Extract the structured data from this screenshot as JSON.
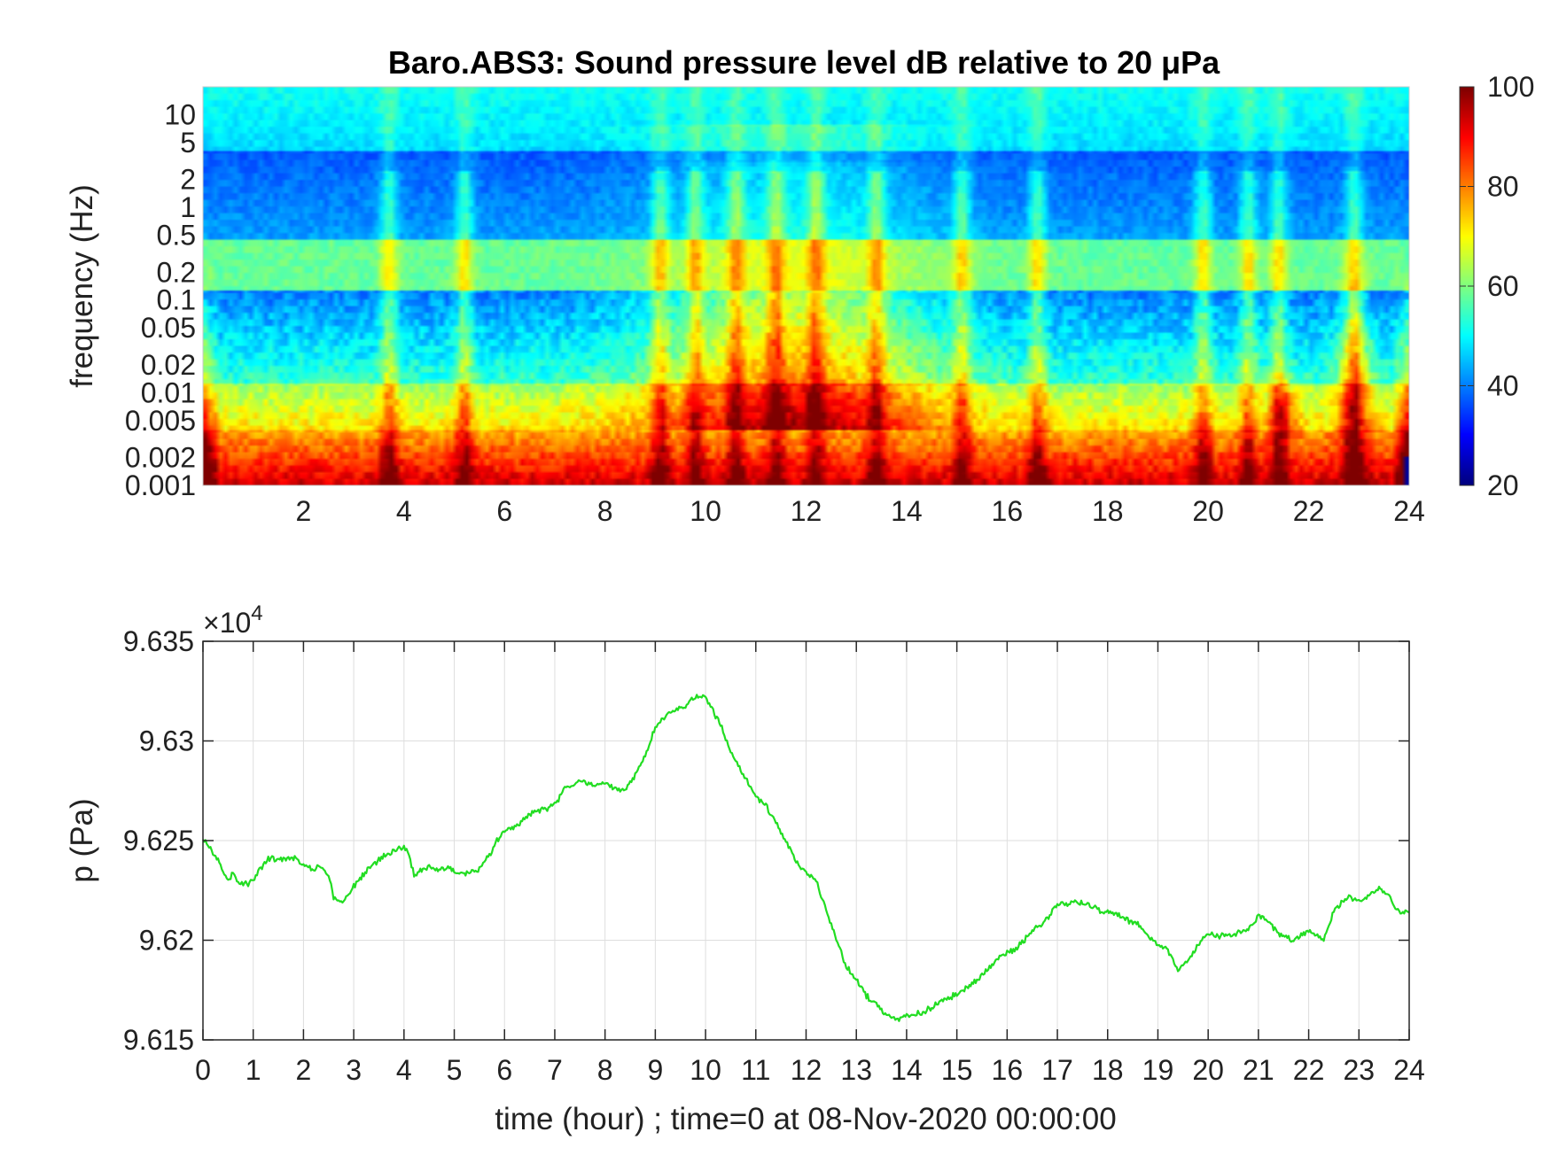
{
  "chart_data": [
    {
      "type": "heatmap",
      "title": "Baro.ABS3: Sound pressure level dB relative to 20 μPa",
      "ylabel": "frequency (Hz)",
      "xlabel": "",
      "xlim": [
        0,
        24
      ],
      "ylim_hz": [
        0.001,
        20
      ],
      "yscale": "log",
      "x_ticks": [
        2,
        4,
        6,
        8,
        10,
        12,
        14,
        16,
        18,
        20,
        22,
        24
      ],
      "y_ticks": [
        0.001,
        0.002,
        0.005,
        0.01,
        0.02,
        0.05,
        0.1,
        0.2,
        0.5,
        1,
        2,
        5,
        10
      ],
      "y_tick_labels": [
        "0.001",
        "0.002",
        "0.005",
        "0.01",
        "0.02",
        "0.05",
        "0.1",
        "0.2",
        "0.5",
        "1",
        "2",
        "5",
        "10"
      ],
      "colorbar": {
        "min": 20,
        "max": 100,
        "ticks": [
          20,
          40,
          60,
          80,
          100
        ],
        "colormap": "jet"
      },
      "x_tick_labels": [
        "2",
        "4",
        "6",
        "8",
        "10",
        "12",
        "14",
        "16",
        "18",
        "20",
        "22",
        "24"
      ],
      "colorbar_tick_labels": [
        "20",
        "40",
        "60",
        "80",
        "100"
      ]
    },
    {
      "type": "line",
      "title": "",
      "xlabel": "time (hour) ; time=0 at 08-Nov-2020 00:00:00",
      "ylabel": "p (Pa)",
      "xlim": [
        0,
        24
      ],
      "ylim": [
        96150,
        96350
      ],
      "y_exponent_label": "×10",
      "y_exponent_power": "4",
      "x_ticks": [
        0,
        1,
        2,
        3,
        4,
        5,
        6,
        7,
        8,
        9,
        10,
        11,
        12,
        13,
        14,
        15,
        16,
        17,
        18,
        19,
        20,
        21,
        22,
        23,
        24
      ],
      "y_ticks": [
        96150,
        96200,
        96250,
        96300,
        96350
      ],
      "y_tick_labels": [
        "9.615",
        "9.62",
        "9.625",
        "9.63",
        "9.635"
      ],
      "grid": true,
      "line_color": "#22dd22",
      "series": [
        {
          "x": [
            0,
            0.3,
            0.5,
            0.6,
            0.7,
            0.9,
            1.0,
            1.2,
            1.3,
            1.5,
            1.7,
            1.9,
            2.0,
            2.2,
            2.3,
            2.5,
            2.6,
            2.7,
            2.8,
            2.9,
            3.0,
            3.2,
            3.4,
            3.6,
            3.8,
            4.0,
            4.1,
            4.2,
            4.4,
            4.5,
            4.7,
            4.9,
            5.0,
            5.3,
            5.5,
            5.7,
            5.9,
            6.0,
            6.2,
            6.5,
            6.8,
            7.0,
            7.2,
            7.5,
            7.7,
            7.9,
            8.0,
            8.2,
            8.4,
            8.6,
            8.8,
            9.0,
            9.2,
            9.4,
            9.6,
            9.8,
            10.0,
            10.3,
            10.5,
            10.8,
            11.0,
            11.2,
            11.5,
            11.8,
            12.0,
            12.2,
            12.5,
            12.8,
            13.0,
            13.2,
            13.4,
            13.6,
            13.8,
            14.0,
            14.2,
            14.4,
            14.6,
            14.8,
            15.0,
            15.2,
            15.4,
            15.6,
            15.8,
            16.0,
            16.2,
            16.5,
            16.8,
            17.0,
            17.3,
            17.6,
            17.9,
            18.2,
            18.4,
            18.6,
            18.8,
            19.0,
            19.2,
            19.4,
            19.6,
            19.8,
            20.0,
            20.2,
            20.5,
            20.8,
            21.0,
            21.2,
            21.4,
            21.7,
            22.0,
            22.3,
            22.5,
            22.8,
            23.0,
            23.2,
            23.4,
            23.6,
            23.8,
            24.0
          ],
          "y": [
            96251,
            96240,
            96230,
            96234,
            96229,
            96228,
            96230,
            96238,
            96241,
            96240,
            96242,
            96240,
            96238,
            96235,
            96238,
            96232,
            96222,
            96219,
            96220,
            96222,
            96227,
            96233,
            96238,
            96242,
            96245,
            96247,
            96243,
            96232,
            96236,
            96237,
            96235,
            96237,
            96234,
            96234,
            96236,
            96243,
            96252,
            96255,
            96257,
            96263,
            96266,
            96268,
            96276,
            96280,
            96278,
            96278,
            96279,
            96276,
            96275,
            96283,
            96292,
            96307,
            96312,
            96316,
            96318,
            96322,
            96322,
            96308,
            96295,
            96281,
            96272,
            96268,
            96254,
            96240,
            96234,
            96230,
            96208,
            96187,
            96180,
            96172,
            96168,
            96162,
            96160,
            96162,
            96163,
            96165,
            96168,
            96171,
            96173,
            96176,
            96180,
            96185,
            96190,
            96194,
            96196,
            96205,
            96211,
            96218,
            96219,
            96218,
            96214,
            96213,
            96210,
            96208,
            96202,
            96198,
            96195,
            96185,
            96190,
            96198,
            96204,
            96202,
            96203,
            96206,
            96212,
            96210,
            96203,
            96200,
            96205,
            96201,
            96215,
            96222,
            96220,
            96222,
            96227,
            96222,
            96214,
            96214
          ]
        }
      ]
    }
  ]
}
